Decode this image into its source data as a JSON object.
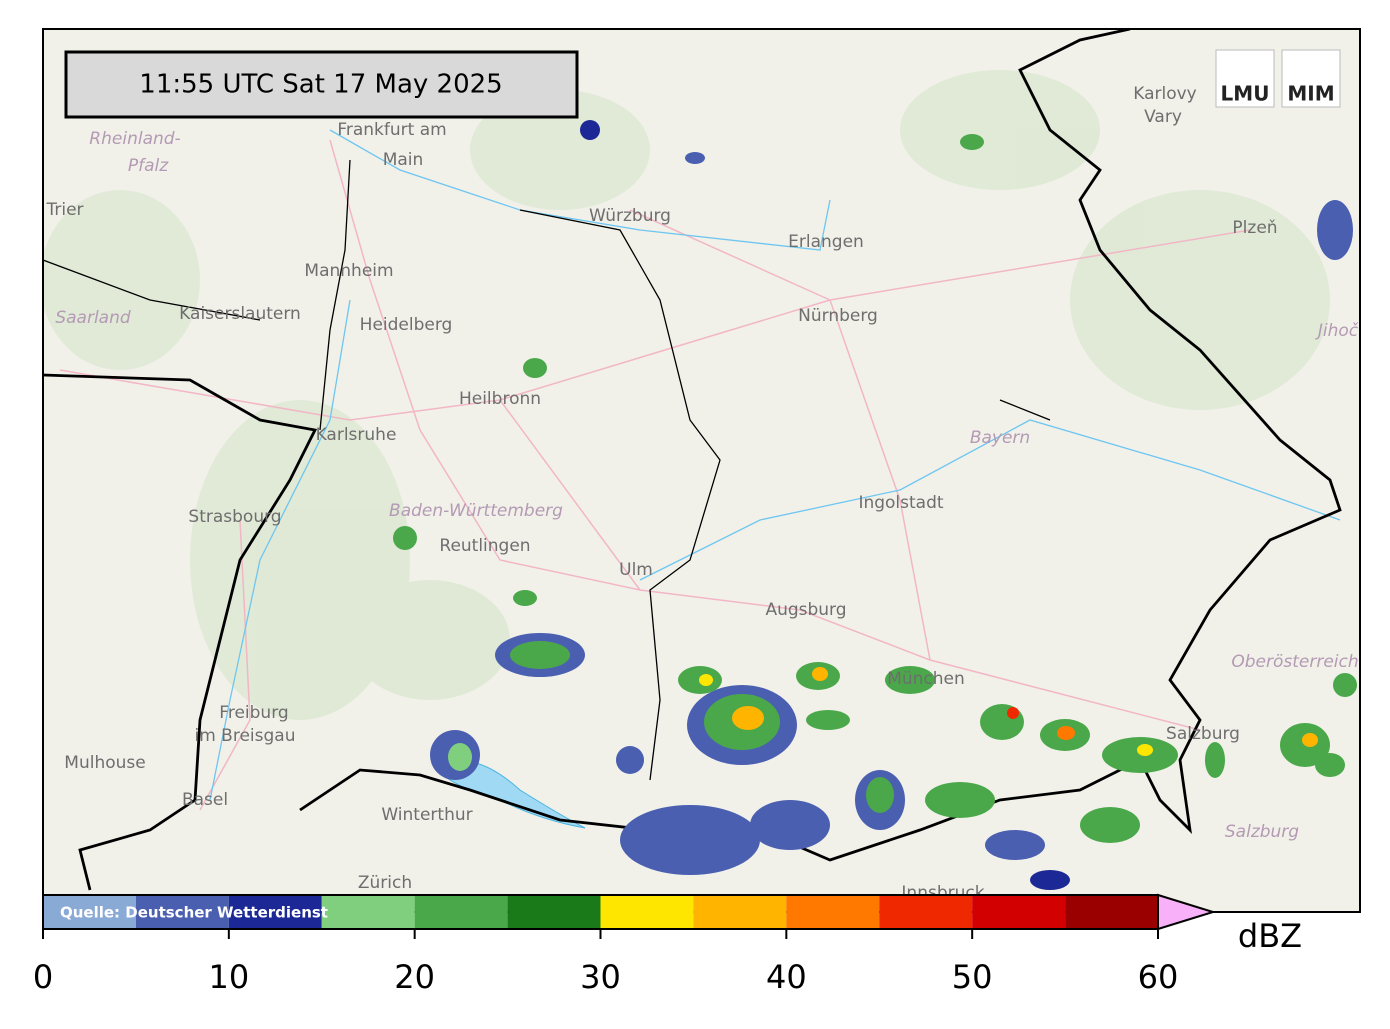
{
  "timestamp": "11:55 UTC  Sat 17 May 2025",
  "logos": [
    "LMU",
    "MIM"
  ],
  "source": "Quelle: Deutscher Wetterdienst",
  "cities": [
    "Frankfurt am",
    "Main",
    "Würzburg",
    "Karlovy",
    "Vary",
    "Trier",
    "Erlangen",
    "Plzeň",
    "Mannheim",
    "Kaiserslautern",
    "Nürnberg",
    "Heidelberg",
    "Heilbronn",
    "Karlsruhe",
    "Ingolstadt",
    "Strasbourg",
    "Reutlingen",
    "Ulm",
    "Augsburg",
    "München",
    "Freiburg",
    "im Breisgau",
    "Mulhouse",
    "Salzburg",
    "Basel",
    "Winterthur",
    "Zürich",
    "Innsbruck"
  ],
  "states": [
    "Rheinland-",
    "Pfalz",
    "Saarland",
    "Bayern",
    "Baden-Württemberg",
    "Oberösterreich",
    "Jihoč",
    "Salzburg"
  ],
  "colorbar": {
    "unit": "dBZ",
    "bins": [
      0,
      5,
      10,
      15,
      20,
      25,
      30,
      35,
      40,
      45,
      50,
      55,
      60
    ],
    "colors": [
      "#8aaad6",
      "#4a5fb0",
      "#1c2896",
      "#7fcf7f",
      "#4aa84a",
      "#1a7a1a",
      "#ffe600",
      "#ffb400",
      "#ff7800",
      "#f02800",
      "#d20000",
      "#9b0000"
    ],
    "over_color": "#f8b0f8",
    "ticks": [
      0,
      10,
      20,
      30,
      40,
      50,
      60
    ]
  }
}
